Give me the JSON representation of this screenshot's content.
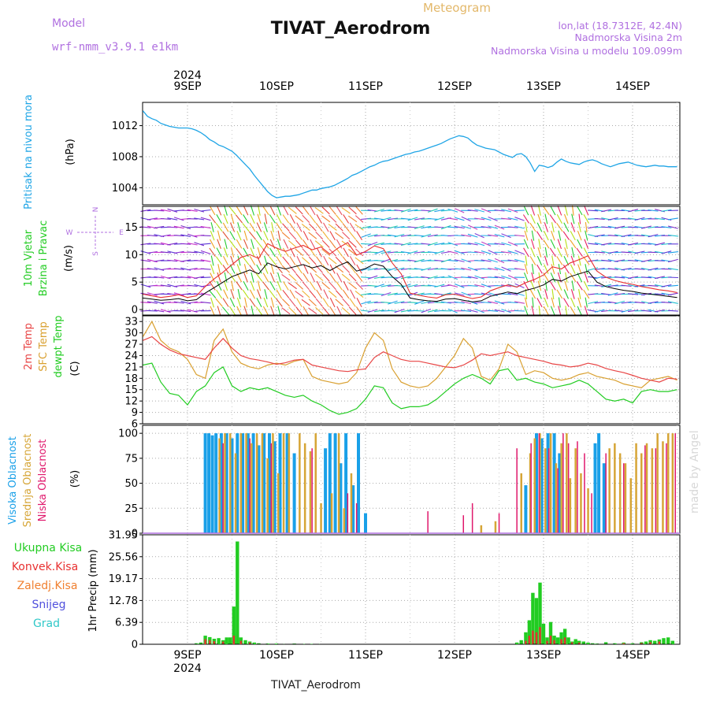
{
  "header": {
    "model_label": "Model",
    "model_name": "wrf-nmm_v3.9.1 e1km",
    "meteogram_label": "Meteogram",
    "station_title": "TIVAT_Aerodrom",
    "lonlat": "lon,lat (18.7312E, 42.4N)",
    "elevation": "Nadmorska Visina 2m",
    "model_elevation": "Nadmorska Visina u modelu 109.099m",
    "footer_title": "TIVAT_Aerodrom",
    "credit": "made by Angel"
  },
  "colors": {
    "pressure": "#1fa5e6",
    "wind_speed": "#000000",
    "wind_gust": "#e83030",
    "temp2m": "#e84545",
    "sfc_temp": "#d9a030",
    "dewpoint": "#22cc22",
    "high_cloud": "#19a0e8",
    "mid_cloud": "#d6a536",
    "low_cloud": "#e0186c",
    "total_precip": "#22cc22",
    "convective_precip": "#e83030",
    "frozen_precip": "#f08030",
    "snow": "#5050dd",
    "hail": "#30c8c8"
  },
  "chart_data": [
    {
      "id": "pressure",
      "type": "line",
      "ylabel_main": "Pritisak na nivou mora",
      "ylabel_unit": "(hPa)",
      "yticks": [
        1004,
        1008,
        1012
      ],
      "ylim": [
        1001.8,
        1015.0
      ],
      "grid": true,
      "x_top_labels": [
        "9SEP",
        "10SEP",
        "11SEP",
        "12SEP",
        "13SEP",
        "14SEP"
      ],
      "x_top_year": "2024",
      "x": [
        0,
        0.05,
        0.1,
        0.15,
        0.2,
        0.25,
        0.3,
        0.35,
        0.4,
        0.45,
        0.5,
        0.55,
        0.6,
        0.65,
        0.7,
        0.75,
        0.8,
        0.85,
        0.9,
        0.95,
        1.0,
        1.05,
        1.1,
        1.15,
        1.2,
        1.25,
        1.3,
        1.35,
        1.4,
        1.45,
        1.5,
        1.55,
        1.6,
        1.65,
        1.7,
        1.75,
        1.8,
        1.85,
        1.9,
        1.95,
        2.0,
        2.05,
        2.1,
        2.15,
        2.2,
        2.25,
        2.3,
        2.35,
        2.4,
        2.45,
        2.5,
        2.55,
        2.6,
        2.65,
        2.7,
        2.75,
        2.8,
        2.85,
        2.9,
        2.95,
        3.0,
        3.05,
        3.1,
        3.15,
        3.2,
        3.25,
        3.3,
        3.35,
        3.4,
        3.45,
        3.5,
        3.55,
        3.6,
        3.65,
        3.7,
        3.75,
        3.8,
        3.85,
        3.9,
        3.95,
        4.0,
        4.05,
        4.1,
        4.15,
        4.2,
        4.25,
        4.3,
        4.35,
        4.4,
        4.45,
        4.5,
        4.55,
        4.6,
        4.65,
        4.7,
        4.75,
        4.8,
        4.85,
        4.9,
        4.95,
        5.0,
        5.05,
        5.1,
        5.15,
        5.2,
        5.25,
        5.3,
        5.35,
        5.4,
        5.45,
        5.5,
        5.55,
        5.6,
        5.65,
        5.7,
        5.75,
        5.8,
        5.85,
        5.9,
        5.95,
        6.0
      ],
      "values": [
        1013.9,
        1013.2,
        1012.9,
        1012.7,
        1012.3,
        1012.1,
        1011.9,
        1011.8,
        1011.7,
        1011.7,
        1011.7,
        1011.6,
        1011.4,
        1011.1,
        1010.7,
        1010.2,
        1009.9,
        1009.5,
        1009.3,
        1009.0,
        1008.7,
        1008.2,
        1007.6,
        1007.0,
        1006.4,
        1005.6,
        1004.9,
        1004.2,
        1003.5,
        1003.0,
        1002.7,
        1002.8,
        1002.9,
        1002.9,
        1003.0,
        1003.1,
        1003.3,
        1003.5,
        1003.7,
        1003.7,
        1003.9,
        1004.0,
        1004.1,
        1004.3,
        1004.6,
        1004.9,
        1005.2,
        1005.6,
        1005.8,
        1006.1,
        1006.4,
        1006.7,
        1006.9,
        1007.2,
        1007.4,
        1007.5,
        1007.7,
        1007.9,
        1008.1,
        1008.3,
        1008.4,
        1008.6,
        1008.7,
        1008.9,
        1009.1,
        1009.3,
        1009.5,
        1009.7,
        1010.0,
        1010.3,
        1010.5,
        1010.7,
        1010.6,
        1010.4,
        1009.9,
        1009.5,
        1009.3,
        1009.1,
        1009.0,
        1008.9,
        1008.6,
        1008.3,
        1008.1,
        1007.9,
        1008.3,
        1008.4,
        1008.0,
        1007.2,
        1006.1,
        1006.9,
        1006.8,
        1006.6,
        1006.8,
        1007.3,
        1007.7,
        1007.4,
        1007.2,
        1007.1,
        1007.0,
        1007.3,
        1007.5,
        1007.6,
        1007.4,
        1007.1,
        1006.9,
        1006.7,
        1006.9,
        1007.1,
        1007.2,
        1007.3,
        1007.1,
        1006.9,
        1006.8,
        1006.7,
        1006.8,
        1006.9,
        1006.8,
        1006.8,
        1006.7,
        1006.7,
        1006.7
      ]
    },
    {
      "id": "wind",
      "type": "line",
      "ylabel_main": "10m Vjetar",
      "ylabel_sub": "Brzina i Pravac",
      "ylabel_unit": "(m/s)",
      "compass": {
        "n": "N",
        "w": "W",
        "e": "E",
        "s": "S"
      },
      "yticks": [
        0,
        5,
        10,
        15
      ],
      "ylim": [
        -1.0,
        18.8
      ],
      "grid": true,
      "speed_x": [
        0,
        0.1,
        0.2,
        0.3,
        0.4,
        0.5,
        0.6,
        0.7,
        0.8,
        0.9,
        1.0,
        1.1,
        1.2,
        1.3,
        1.4,
        1.5,
        1.6,
        1.7,
        1.8,
        1.9,
        2.0,
        2.1,
        2.2,
        2.3,
        2.4,
        2.5,
        2.6,
        2.7,
        2.8,
        2.9,
        3.0,
        3.1,
        3.2,
        3.3,
        3.4,
        3.5,
        3.6,
        3.7,
        3.8,
        3.9,
        4.0,
        4.1,
        4.2,
        4.3,
        4.4,
        4.5,
        4.6,
        4.7,
        4.8,
        4.9,
        5.0,
        5.1,
        5.2,
        5.3,
        5.4,
        5.5,
        5.6,
        5.7,
        5.8,
        5.9,
        6.0
      ],
      "speed": [
        2.1,
        1.9,
        1.7,
        1.8,
        2.0,
        1.6,
        1.8,
        3.0,
        4.0,
        5.0,
        6.0,
        6.6,
        7.2,
        6.5,
        8.5,
        7.8,
        7.4,
        7.8,
        8.2,
        7.6,
        8.0,
        7.1,
        8.0,
        8.7,
        7.0,
        7.5,
        8.3,
        7.9,
        6.0,
        4.6,
        2.1,
        1.8,
        1.6,
        1.5,
        1.9,
        2.0,
        1.7,
        1.4,
        1.6,
        2.4,
        2.8,
        3.2,
        2.9,
        3.5,
        3.9,
        4.5,
        5.5,
        5.2,
        6.0,
        6.5,
        7.0,
        5.0,
        4.2,
        3.8,
        3.5,
        3.3,
        3.0,
        2.8,
        2.6,
        2.4,
        2.2
      ],
      "gust": [
        2.8,
        2.5,
        2.2,
        2.4,
        2.7,
        2.2,
        2.5,
        4.2,
        5.6,
        6.8,
        8.2,
        9.5,
        10.0,
        9.3,
        12.0,
        11.2,
        10.6,
        11.2,
        11.7,
        10.9,
        11.4,
        10.1,
        11.3,
        12.2,
        9.9,
        10.6,
        11.6,
        11.1,
        8.5,
        6.5,
        3.0,
        2.6,
        2.3,
        2.1,
        2.7,
        2.8,
        2.4,
        2.0,
        2.3,
        3.4,
        4.0,
        4.5,
        4.1,
        4.9,
        5.5,
        6.3,
        7.8,
        7.4,
        8.5,
        9.1,
        9.8,
        7.0,
        5.9,
        5.3,
        4.9,
        4.6,
        4.2,
        3.9,
        3.6,
        3.4,
        3.1
      ]
    },
    {
      "id": "temperature",
      "type": "line",
      "ylabel_lines": [
        "2m Temp",
        "SFC Temp",
        "dewpt Temp"
      ],
      "ylabel_unit": "(C)",
      "yticks": [
        6,
        9,
        12,
        15,
        18,
        21,
        24,
        27,
        30,
        33
      ],
      "ylim": [
        6,
        34.5
      ],
      "grid": true,
      "x": [
        0,
        0.1,
        0.2,
        0.3,
        0.4,
        0.5,
        0.6,
        0.7,
        0.8,
        0.9,
        1.0,
        1.1,
        1.2,
        1.3,
        1.4,
        1.5,
        1.6,
        1.7,
        1.8,
        1.9,
        2.0,
        2.1,
        2.2,
        2.3,
        2.4,
        2.5,
        2.6,
        2.7,
        2.8,
        2.9,
        3.0,
        3.1,
        3.2,
        3.3,
        3.4,
        3.5,
        3.6,
        3.7,
        3.8,
        3.9,
        4.0,
        4.1,
        4.2,
        4.3,
        4.4,
        4.5,
        4.6,
        4.7,
        4.8,
        4.9,
        5.0,
        5.1,
        5.2,
        5.3,
        5.4,
        5.5,
        5.6,
        5.7,
        5.8,
        5.9,
        6.0
      ],
      "t2m": [
        28.0,
        29.0,
        27.0,
        25.5,
        24.5,
        24.0,
        23.5,
        23.0,
        26.0,
        28.5,
        26.0,
        24.0,
        23.2,
        22.8,
        22.3,
        21.7,
        22.1,
        22.8,
        23.0,
        21.5,
        21.0,
        20.5,
        20.0,
        19.8,
        20.2,
        20.5,
        23.5,
        25.0,
        24.0,
        23.0,
        22.5,
        22.5,
        22.0,
        21.5,
        21.0,
        20.8,
        21.5,
        22.8,
        24.5,
        24.0,
        24.5,
        25.0,
        24.0,
        23.5,
        23.0,
        22.5,
        21.8,
        21.5,
        21.0,
        21.3,
        22.0,
        21.5,
        20.6,
        20.0,
        19.5,
        18.8,
        18.0,
        17.5,
        17.0,
        18.0,
        17.8
      ],
      "tsfc": [
        29.0,
        33.0,
        28.0,
        26.0,
        25.0,
        23.0,
        19.0,
        18.0,
        28.0,
        31.0,
        25.0,
        22.0,
        21.0,
        20.5,
        21.5,
        22.0,
        21.5,
        22.5,
        23.0,
        18.5,
        17.5,
        17.0,
        16.5,
        17.0,
        19.5,
        26.0,
        30.0,
        28.0,
        20.5,
        17.0,
        16.0,
        15.5,
        16.0,
        18.0,
        21.0,
        24.0,
        28.5,
        26.0,
        18.5,
        17.5,
        20.5,
        27.0,
        25.0,
        19.0,
        20.0,
        19.5,
        18.0,
        17.5,
        18.0,
        19.0,
        19.5,
        18.5,
        18.0,
        17.5,
        16.5,
        16.0,
        15.5,
        17.5,
        18.0,
        18.5,
        17.5
      ],
      "dewpt": [
        21.5,
        22.0,
        17.0,
        14.0,
        13.5,
        11.0,
        14.5,
        16.0,
        19.5,
        21.0,
        16.0,
        14.5,
        15.5,
        15.0,
        15.5,
        14.5,
        13.5,
        13.0,
        13.5,
        12.0,
        11.0,
        9.5,
        8.5,
        9.0,
        10.0,
        12.5,
        16.0,
        15.5,
        11.5,
        10.0,
        10.5,
        10.5,
        11.0,
        12.5,
        14.5,
        16.5,
        18.0,
        19.0,
        18.0,
        16.5,
        20.0,
        20.5,
        17.5,
        18.0,
        17.0,
        16.5,
        15.5,
        16.0,
        16.5,
        17.5,
        16.5,
        14.5,
        12.5,
        12.0,
        12.5,
        11.5,
        14.5,
        15.0,
        14.5,
        14.5,
        15.0
      ]
    },
    {
      "id": "cloud",
      "type": "bar",
      "ylabel_lines": [
        "Visoka Oblacnost",
        "Srednja Oblacnost",
        "Niska Oblacnost"
      ],
      "ylabel_unit": "(%)",
      "yticks": [
        0,
        25,
        50,
        75,
        100
      ],
      "ylim": [
        0,
        108
      ],
      "grid": true,
      "high": {
        "x": [
          0.7,
          0.74,
          0.78,
          0.82,
          0.88,
          0.94,
          1.0,
          1.06,
          1.12,
          1.18,
          1.24,
          1.3,
          1.36,
          1.42,
          1.48,
          1.54,
          1.62,
          1.7,
          2.05,
          2.1,
          2.16,
          2.22,
          2.28,
          2.36,
          2.42,
          2.5,
          4.3,
          4.42,
          4.48,
          4.55,
          4.62,
          4.68,
          5.08,
          5.12,
          5.18
        ],
        "v": [
          100,
          100,
          98,
          100,
          100,
          100,
          95,
          100,
          100,
          100,
          100,
          88,
          100,
          100,
          92,
          100,
          100,
          80,
          85,
          100,
          100,
          70,
          100,
          48,
          100,
          20,
          48,
          100,
          95,
          100,
          100,
          80,
          90,
          100,
          70
        ]
      },
      "mid": {
        "x": [
          0.86,
          0.92,
          0.98,
          1.04,
          1.1,
          1.16,
          1.22,
          1.28,
          1.34,
          1.4,
          1.46,
          1.52,
          1.58,
          1.64,
          1.76,
          1.82,
          1.88,
          1.94,
          2.0,
          2.12,
          2.2,
          2.26,
          2.34,
          3.8,
          3.96,
          4.25,
          4.35,
          4.4,
          4.46,
          4.52,
          4.58,
          4.64,
          4.7,
          4.76,
          4.8,
          4.86,
          4.92,
          5.0,
          5.24,
          5.3,
          5.36,
          5.42,
          5.48,
          5.54,
          5.6,
          5.66,
          5.72,
          5.78,
          5.84,
          5.9,
          5.95
        ],
        "v": [
          95,
          100,
          100,
          80,
          100,
          100,
          90,
          100,
          100,
          75,
          100,
          60,
          100,
          100,
          100,
          90,
          82,
          100,
          30,
          40,
          100,
          25,
          60,
          8,
          12,
          60,
          80,
          95,
          100,
          85,
          100,
          70,
          90,
          100,
          55,
          85,
          60,
          45,
          85,
          90,
          80,
          70,
          55,
          90,
          80,
          90,
          85,
          100,
          92,
          100,
          100
        ]
      },
      "low": {
        "x": [
          0.9,
          1.2,
          1.44,
          1.9,
          2.3,
          2.4,
          3.2,
          3.6,
          3.7,
          4.0,
          4.2,
          4.36,
          4.45,
          4.56,
          4.66,
          4.72,
          4.78,
          4.88,
          4.96,
          5.04,
          5.2,
          5.4,
          5.64,
          5.76,
          5.88,
          5.98
        ],
        "v": [
          90,
          95,
          90,
          85,
          40,
          30,
          22,
          18,
          30,
          20,
          85,
          90,
          100,
          85,
          65,
          100,
          90,
          92,
          80,
          40,
          80,
          70,
          88,
          85,
          90,
          100
        ]
      }
    },
    {
      "id": "precip",
      "type": "bar",
      "legend_items": [
        "Ukupna Kisa",
        "Konvek.Kisa",
        "Zaledj.Kisa",
        "Snijeg",
        "Grad"
      ],
      "ylabel_unit": "1hr Precip (mm)",
      "yticks": [
        0,
        6.39,
        12.78,
        19.17,
        25.56,
        31.95
      ],
      "ytick_labels": [
        "0",
        "6.39",
        "12.78",
        "19.17",
        "25.56",
        "31.95"
      ],
      "ylim": [
        0,
        31.95
      ],
      "grid": true,
      "x_bottom_labels": [
        "9SEP",
        "10SEP",
        "11SEP",
        "12SEP",
        "13SEP",
        "14SEP"
      ],
      "x_bottom_year": "2024",
      "total": {
        "x": [
          0.6,
          0.65,
          0.7,
          0.75,
          0.8,
          0.85,
          0.9,
          0.94,
          0.98,
          1.02,
          1.06,
          1.1,
          1.15,
          1.2,
          1.25,
          1.3,
          1.4,
          1.5,
          1.6,
          1.7,
          1.8,
          1.9,
          2.0,
          4.2,
          4.25,
          4.3,
          4.34,
          4.38,
          4.42,
          4.46,
          4.5,
          4.54,
          4.58,
          4.62,
          4.66,
          4.7,
          4.74,
          4.78,
          4.82,
          4.86,
          4.9,
          4.95,
          5.0,
          5.05,
          5.1,
          5.2,
          5.3,
          5.4,
          5.5,
          5.6,
          5.65,
          5.7,
          5.75,
          5.8,
          5.85,
          5.9,
          5.95
        ],
        "v": [
          0.3,
          0.5,
          2.5,
          2.1,
          1.6,
          1.8,
          1.2,
          2.0,
          2.0,
          11.0,
          30.0,
          2.0,
          1.2,
          0.8,
          0.5,
          0.3,
          0.2,
          0.2,
          0.1,
          0.2,
          0.1,
          0.1,
          0.1,
          0.5,
          1.2,
          3.5,
          7.0,
          15.0,
          13.5,
          18.0,
          6.0,
          2.0,
          6.5,
          2.5,
          2.0,
          3.5,
          4.5,
          2.0,
          0.8,
          1.5,
          1.0,
          0.8,
          0.5,
          0.3,
          0.2,
          0.6,
          0.3,
          0.5,
          0.3,
          0.6,
          0.8,
          1.2,
          1.0,
          1.4,
          1.8,
          2.0,
          1.0
        ]
      },
      "convective": {
        "x": [
          0.7,
          0.75,
          0.8,
          0.9,
          1.02,
          1.1,
          1.2,
          4.3,
          4.34,
          4.38,
          4.42,
          4.46,
          4.54,
          4.58,
          4.62,
          4.7,
          4.74,
          4.82,
          4.9,
          5.4,
          5.6,
          5.7,
          5.8
        ],
        "v": [
          1.5,
          1.2,
          0.9,
          0.8,
          2.5,
          1.0,
          0.5,
          1.0,
          2.5,
          4.0,
          3.5,
          5.0,
          1.0,
          2.5,
          1.2,
          1.5,
          2.0,
          0.6,
          0.5,
          0.3,
          0.4,
          0.6,
          0.8
        ]
      }
    }
  ]
}
